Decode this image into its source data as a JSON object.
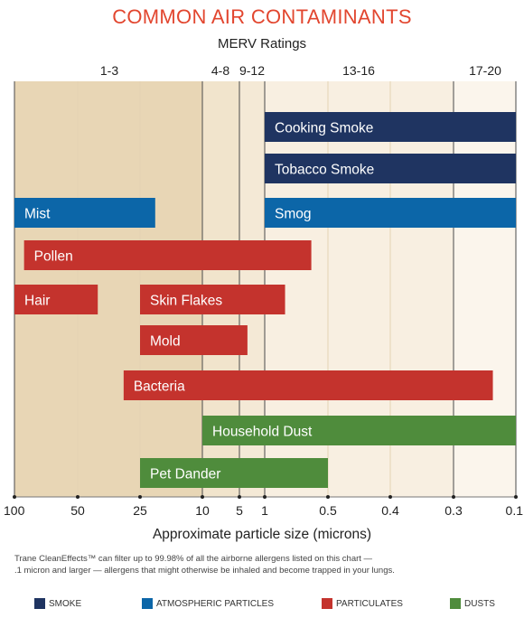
{
  "chart_data": {
    "type": "bar",
    "orientation": "horizontal-range",
    "title": "COMMON AIR CONTAMINANTS",
    "subtitle": "MERV Ratings",
    "xlabel": "Approximate particle size (microns)",
    "x_ticks": [
      "100",
      "50",
      "25",
      "10",
      "5",
      "1",
      "0.5",
      "0.4",
      "0.3",
      "0.1"
    ],
    "merv_labels": [
      "1-3",
      "4-8",
      "9-12",
      "13-16",
      "17-20"
    ],
    "series": [
      {
        "name": "SMOKE",
        "color": "#1f3461"
      },
      {
        "name": "ATMOSPHERIC PARTICLES",
        "color": "#0c66a8"
      },
      {
        "name": "PARTICULATES",
        "color": "#c4332d"
      },
      {
        "name": "DUSTS",
        "color": "#4f8c3c"
      }
    ],
    "bars": [
      {
        "label": "Cooking Smoke",
        "series": 0,
        "row": 0,
        "from": "1",
        "to": "0.1"
      },
      {
        "label": "Tobacco Smoke",
        "series": 0,
        "row": 1,
        "from": "1",
        "to": "0.1"
      },
      {
        "label": "Mist",
        "series": 1,
        "row": 2,
        "from": "100",
        "to": "20"
      },
      {
        "label": "Smog",
        "series": 1,
        "row": 2,
        "from": "1",
        "to": "0.1"
      },
      {
        "label": "Pollen",
        "series": 2,
        "row": 3,
        "from": "90",
        "to": "0.6"
      },
      {
        "label": "Hair",
        "series": 2,
        "row": 4,
        "from": "100",
        "to": "40"
      },
      {
        "label": "Skin Flakes",
        "series": 2,
        "row": 4,
        "from": "25",
        "to": "0.8"
      },
      {
        "label": "Mold",
        "series": 2,
        "row": 5,
        "from": "25",
        "to": "3"
      },
      {
        "label": "Bacteria",
        "series": 2,
        "row": 6,
        "from": "30",
        "to": "0.15"
      },
      {
        "label": "Household Dust",
        "series": 3,
        "row": 7,
        "from": "10",
        "to": "0.1"
      },
      {
        "label": "Pet Dander",
        "series": 3,
        "row": 8,
        "from": "25",
        "to": "0.5"
      }
    ]
  },
  "note": {
    "line1": "Trane CleanEffects™ can filter up to 99.98% of all the airborne allergens listed on this chart —",
    "line2": ".1 micron and larger — allergens that might otherwise be inhaled and become trapped in your lungs."
  },
  "legend": {
    "items": [
      "SMOKE",
      "ATMOSPHERIC PARTICLES",
      "PARTICULATES",
      "DUSTS"
    ],
    "colors": [
      "#1f3461",
      "#0c66a8",
      "#c4332d",
      "#4f8c3c"
    ]
  }
}
